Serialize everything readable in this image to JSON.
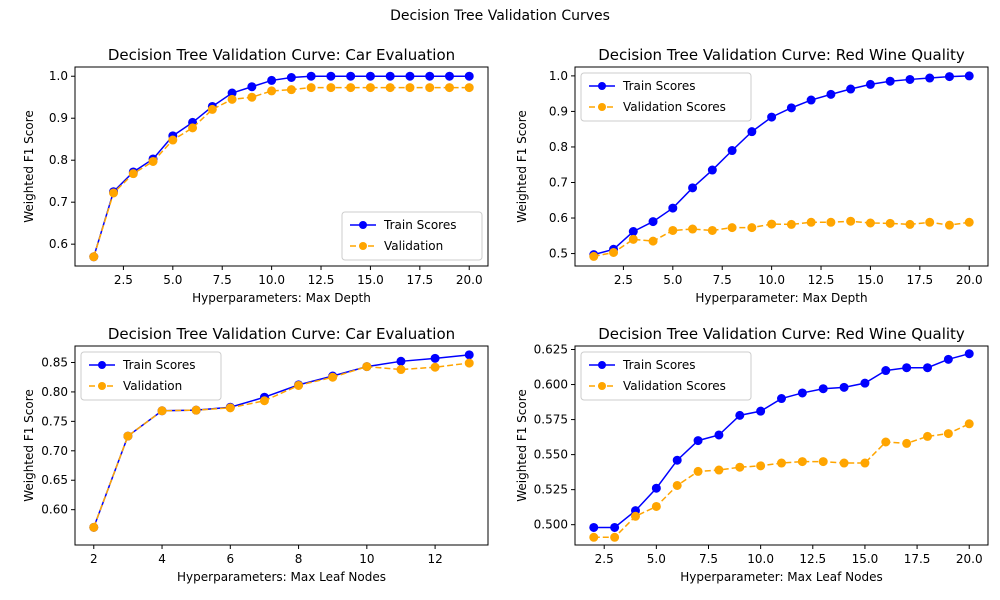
{
  "figure": {
    "suptitle": "Decision Tree Validation Curves"
  },
  "colors": {
    "train": "#0000ff",
    "validation": "#ffa500"
  },
  "chart_data": [
    {
      "type": "line",
      "title": "Decision Tree Validation Curve: Car Evaluation",
      "xlabel": "Hyperparameters: Max Depth",
      "ylabel": "Weighted F1 Score",
      "xlim": [
        0.05,
        20.95
      ],
      "ylim": [
        0.548,
        1.022
      ],
      "xticks": [
        2.5,
        5.0,
        7.5,
        10.0,
        12.5,
        15.0,
        17.5,
        20.0
      ],
      "xtick_labels": [
        "2.5",
        "5.0",
        "7.5",
        "10.0",
        "12.5",
        "15.0",
        "17.5",
        "20.0"
      ],
      "yticks": [
        0.6,
        0.7,
        0.8,
        0.9,
        1.0
      ],
      "ytick_labels": [
        "0.6",
        "0.7",
        "0.8",
        "0.9",
        "1.0"
      ],
      "legend_position": "lower-right",
      "x": [
        1,
        2,
        3,
        4,
        5,
        6,
        7,
        8,
        9,
        10,
        11,
        12,
        13,
        14,
        15,
        16,
        17,
        18,
        19,
        20
      ],
      "series": [
        {
          "name": "Train Scores",
          "style": "solid",
          "values": [
            0.57,
            0.725,
            0.772,
            0.803,
            0.858,
            0.89,
            0.928,
            0.96,
            0.975,
            0.99,
            0.997,
            1.0,
            1.0,
            1.0,
            1.0,
            1.0,
            1.0,
            1.0,
            1.0,
            1.0
          ]
        },
        {
          "name": "Validation",
          "style": "dashed",
          "values": [
            0.57,
            0.722,
            0.768,
            0.797,
            0.848,
            0.877,
            0.921,
            0.945,
            0.95,
            0.965,
            0.968,
            0.973,
            0.973,
            0.973,
            0.973,
            0.973,
            0.973,
            0.973,
            0.973,
            0.973
          ]
        }
      ]
    },
    {
      "type": "line",
      "title": "Decision Tree Validation Curve: Red Wine Quality",
      "xlabel": "Hyperparameter: Max Depth",
      "ylabel": "Weighted F1 Score",
      "xlim": [
        0.05,
        20.95
      ],
      "ylim": [
        0.465,
        1.025
      ],
      "xticks": [
        2.5,
        5.0,
        7.5,
        10.0,
        12.5,
        15.0,
        17.5,
        20.0
      ],
      "xtick_labels": [
        "2.5",
        "5.0",
        "7.5",
        "10.0",
        "12.5",
        "15.0",
        "17.5",
        "20.0"
      ],
      "yticks": [
        0.5,
        0.6,
        0.7,
        0.8,
        0.9,
        1.0
      ],
      "ytick_labels": [
        "0.5",
        "0.6",
        "0.7",
        "0.8",
        "0.9",
        "1.0"
      ],
      "legend_position": "upper-left",
      "x": [
        1,
        2,
        3,
        4,
        5,
        6,
        7,
        8,
        9,
        10,
        11,
        12,
        13,
        14,
        15,
        16,
        17,
        18,
        19,
        20
      ],
      "series": [
        {
          "name": "Train Scores",
          "style": "solid",
          "values": [
            0.497,
            0.512,
            0.562,
            0.59,
            0.628,
            0.685,
            0.735,
            0.79,
            0.843,
            0.884,
            0.91,
            0.932,
            0.948,
            0.963,
            0.976,
            0.985,
            0.99,
            0.994,
            0.998,
            1.0
          ]
        },
        {
          "name": "Validation Scores",
          "style": "dashed",
          "values": [
            0.492,
            0.503,
            0.54,
            0.535,
            0.565,
            0.569,
            0.565,
            0.573,
            0.573,
            0.583,
            0.582,
            0.588,
            0.588,
            0.591,
            0.586,
            0.585,
            0.582,
            0.588,
            0.58,
            0.588
          ]
        }
      ]
    },
    {
      "type": "line",
      "title": "Decision Tree Validation Curve: Car Evaluation",
      "xlabel": "Hyperparameters: Max Leaf Nodes",
      "ylabel": "Weighted F1 Score",
      "xlim": [
        1.45,
        13.55
      ],
      "ylim": [
        0.54,
        0.878
      ],
      "xticks": [
        2,
        4,
        6,
        8,
        10,
        12
      ],
      "xtick_labels": [
        "2",
        "4",
        "6",
        "8",
        "10",
        "12"
      ],
      "yticks": [
        0.6,
        0.65,
        0.7,
        0.75,
        0.8,
        0.85
      ],
      "ytick_labels": [
        "0.60",
        "0.65",
        "0.70",
        "0.75",
        "0.80",
        "0.85"
      ],
      "legend_position": "upper-left",
      "x": [
        2,
        3,
        4,
        5,
        6,
        7,
        8,
        9,
        10,
        11,
        12,
        13
      ],
      "series": [
        {
          "name": "Train Scores",
          "style": "solid",
          "values": [
            0.57,
            0.725,
            0.768,
            0.769,
            0.774,
            0.791,
            0.812,
            0.827,
            0.843,
            0.852,
            0.857,
            0.863
          ]
        },
        {
          "name": "Validation",
          "style": "dashed",
          "values": [
            0.57,
            0.725,
            0.768,
            0.769,
            0.773,
            0.785,
            0.811,
            0.825,
            0.843,
            0.838,
            0.842,
            0.849
          ]
        }
      ]
    },
    {
      "type": "line",
      "title": "Decision Tree Validation Curve: Red Wine Quality",
      "xlabel": "Hyperparameter: Max Leaf Nodes",
      "ylabel": "Weighted F1 Score",
      "xlim": [
        1.1,
        20.9
      ],
      "ylim": [
        0.4855,
        0.6275
      ],
      "xticks": [
        2.5,
        5.0,
        7.5,
        10.0,
        12.5,
        15.0,
        17.5,
        20.0
      ],
      "xtick_labels": [
        "2.5",
        "5.0",
        "7.5",
        "10.0",
        "12.5",
        "15.0",
        "17.5",
        "20.0"
      ],
      "yticks": [
        0.5,
        0.525,
        0.55,
        0.575,
        0.6,
        0.625
      ],
      "ytick_labels": [
        "0.500",
        "0.525",
        "0.550",
        "0.575",
        "0.600",
        "0.625"
      ],
      "legend_position": "upper-left",
      "x": [
        2,
        3,
        4,
        5,
        6,
        7,
        8,
        9,
        10,
        11,
        12,
        13,
        14,
        15,
        16,
        17,
        18,
        19,
        20
      ],
      "series": [
        {
          "name": "Train Scores",
          "style": "solid",
          "values": [
            0.498,
            0.498,
            0.51,
            0.526,
            0.546,
            0.56,
            0.564,
            0.578,
            0.581,
            0.59,
            0.594,
            0.597,
            0.598,
            0.601,
            0.61,
            0.612,
            0.612,
            0.618,
            0.622
          ]
        },
        {
          "name": "Validation Scores",
          "style": "dashed",
          "values": [
            0.491,
            0.491,
            0.506,
            0.513,
            0.528,
            0.538,
            0.539,
            0.541,
            0.542,
            0.544,
            0.545,
            0.545,
            0.544,
            0.544,
            0.559,
            0.558,
            0.563,
            0.565,
            0.572
          ]
        }
      ]
    }
  ]
}
